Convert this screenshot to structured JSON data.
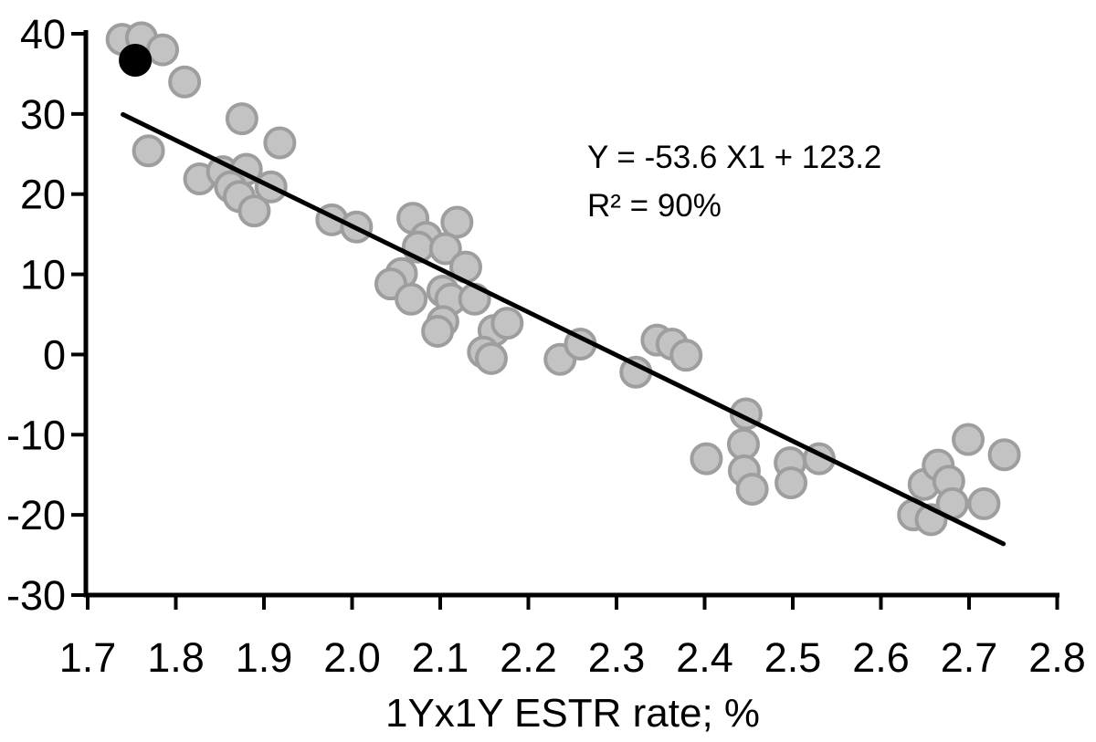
{
  "chart_data": {
    "type": "scatter",
    "xlabel": "1Yx1Y ESTR rate; %",
    "ylabel": "",
    "title": "",
    "x_range": [
      1.7,
      2.8
    ],
    "y_range": [
      -30,
      40
    ],
    "x_tick_labels": [
      "1.7",
      "1.8",
      "1.9",
      "2.0",
      "2.1",
      "2.2",
      "2.3",
      "2.4",
      "2.5",
      "2.6",
      "2.7",
      "2.8"
    ],
    "y_tick_labels": [
      "40",
      "30",
      "20",
      "10",
      "0",
      "-10",
      "-20",
      "-30"
    ],
    "grid": false,
    "legend": "none",
    "annotation": {
      "line1": "Y = -53.6 X1 + 123.2",
      "line2": "R² = 90%"
    },
    "trendline": {
      "slope": -53.6,
      "intercept": 123.2,
      "x_start": 1.74,
      "x_end": 2.739,
      "color": "#000000",
      "width": 5
    },
    "series": [
      {
        "name": "observations",
        "marker": {
          "fill": "#c3c3c3",
          "stroke": "#9e9e9e",
          "radius": 16,
          "stroke_width": 4
        },
        "points": [
          [
            1.739,
            39.3
          ],
          [
            1.761,
            39.5
          ],
          [
            1.785,
            38.0
          ],
          [
            1.81,
            34.0
          ],
          [
            1.769,
            25.4
          ],
          [
            1.875,
            29.4
          ],
          [
            1.918,
            26.4
          ],
          [
            1.827,
            21.9
          ],
          [
            1.853,
            22.8
          ],
          [
            1.88,
            23.1
          ],
          [
            1.862,
            20.9
          ],
          [
            1.872,
            19.7
          ],
          [
            1.889,
            17.9
          ],
          [
            1.908,
            20.9
          ],
          [
            1.977,
            16.8
          ],
          [
            2.005,
            15.9
          ],
          [
            2.069,
            17.0
          ],
          [
            2.119,
            16.5
          ],
          [
            2.084,
            14.6
          ],
          [
            2.075,
            13.4
          ],
          [
            2.106,
            13.2
          ],
          [
            2.129,
            10.9
          ],
          [
            2.056,
            10.1
          ],
          [
            2.044,
            8.8
          ],
          [
            2.067,
            6.9
          ],
          [
            2.103,
            7.9
          ],
          [
            2.112,
            6.9
          ],
          [
            2.139,
            6.9
          ],
          [
            2.103,
            4.1
          ],
          [
            2.097,
            2.9
          ],
          [
            2.161,
            3.0
          ],
          [
            2.176,
            3.9
          ],
          [
            2.149,
            0.3
          ],
          [
            2.158,
            -0.5
          ],
          [
            2.236,
            -0.6
          ],
          [
            2.259,
            1.3
          ],
          [
            2.322,
            -2.2
          ],
          [
            2.346,
            1.8
          ],
          [
            2.363,
            1.3
          ],
          [
            2.379,
            -0.1
          ],
          [
            2.402,
            -13.0
          ],
          [
            2.444,
            -11.2
          ],
          [
            2.447,
            -7.4
          ],
          [
            2.445,
            -14.5
          ],
          [
            2.454,
            -16.8
          ],
          [
            2.497,
            -13.5
          ],
          [
            2.498,
            -16.0
          ],
          [
            2.53,
            -13.0
          ],
          [
            2.637,
            -20.0
          ],
          [
            2.649,
            -16.2
          ],
          [
            2.657,
            -20.6
          ],
          [
            2.665,
            -13.8
          ],
          [
            2.677,
            -15.8
          ],
          [
            2.681,
            -18.6
          ],
          [
            2.699,
            -10.6
          ],
          [
            2.717,
            -18.6
          ],
          [
            2.74,
            -12.5
          ]
        ]
      },
      {
        "name": "highlighted-observation",
        "marker": {
          "fill": "#000000",
          "stroke": "#000000",
          "radius": 16,
          "stroke_width": 4
        },
        "points": [
          [
            1.754,
            36.7
          ]
        ]
      }
    ],
    "axis_color": "#000000"
  }
}
